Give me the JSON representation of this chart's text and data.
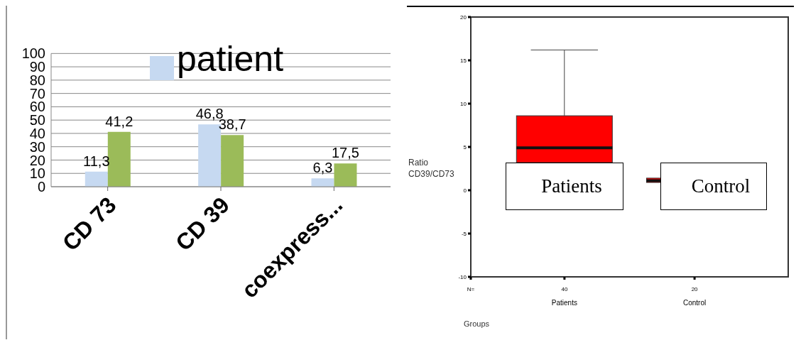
{
  "chart_data": [
    {
      "type": "bar",
      "categories": [
        "CD 73",
        "CD 39",
        "coexpress..."
      ],
      "series": [
        {
          "name": "patient",
          "color": "#c6d9f1",
          "values": [
            11.3,
            46.8,
            6.3
          ],
          "value_labels": [
            "11,3",
            "46,8",
            "6,3"
          ]
        },
        {
          "color": "#9bbb59",
          "values": [
            41.2,
            38.7,
            17.5
          ],
          "value_labels": [
            "41,2",
            "38,7",
            "17,5"
          ]
        }
      ],
      "ylim": [
        0,
        100
      ],
      "yticks": [
        0,
        10,
        20,
        30,
        40,
        50,
        60,
        70,
        80,
        90,
        100
      ],
      "grid": "y",
      "legend": "top"
    },
    {
      "type": "box",
      "categories": [
        "Patients",
        "Control"
      ],
      "color": "#ff0000",
      "boxes": [
        {
          "low": null,
          "q1": 3.2,
          "median": 4.9,
          "q3": 8.6,
          "high": 16.2
        },
        {
          "low": null,
          "q1": 0.9,
          "median": 1.1,
          "q3": 1.4,
          "high": null
        }
      ],
      "ylim": [
        -10,
        20
      ],
      "yticks": [
        -10,
        -5,
        0,
        5,
        10,
        15,
        20
      ],
      "ylabel": "Ratio CD39/CD73",
      "xlabel": "Groups",
      "annotations": [
        "N=",
        "40",
        "20",
        "Patients",
        "Control"
      ]
    }
  ]
}
